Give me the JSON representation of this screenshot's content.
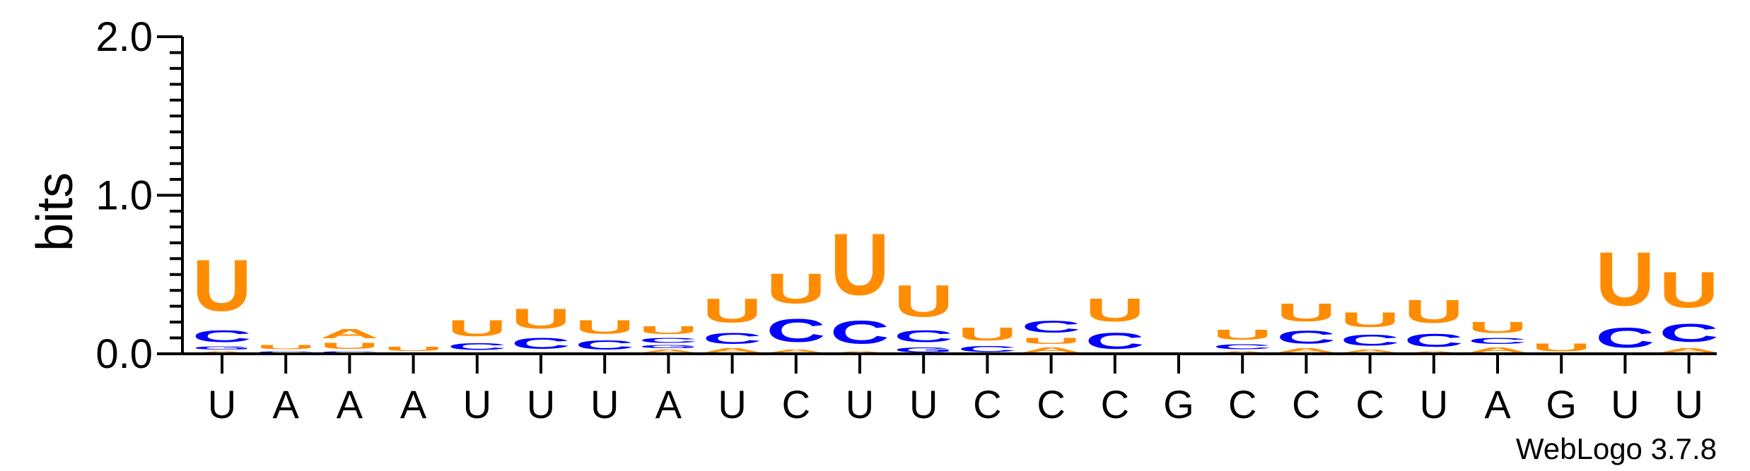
{
  "chart_data": {
    "type": "sequence-logo",
    "ylabel": "bits",
    "ylim": [
      0,
      2
    ],
    "yticks": [
      "0.0",
      "1.0",
      "2.0"
    ],
    "positions": [
      "U",
      "A",
      "A",
      "A",
      "U",
      "U",
      "U",
      "A",
      "U",
      "C",
      "U",
      "U",
      "C",
      "C",
      "C",
      "G",
      "C",
      "C",
      "C",
      "U",
      "A",
      "G",
      "U",
      "U"
    ],
    "stacks": [
      [
        {
          "letter": "A",
          "bits": 0.02
        },
        {
          "letter": "G",
          "bits": 0.03
        },
        {
          "letter": "C",
          "bits": 0.12
        },
        {
          "letter": "U",
          "bits": 0.52
        }
      ],
      [
        {
          "letter": "C",
          "bits": 0.02
        },
        {
          "letter": "U",
          "bits": 0.04
        }
      ],
      [
        {
          "letter": "C",
          "bits": 0.02
        },
        {
          "letter": "U",
          "bits": 0.06
        },
        {
          "letter": "A",
          "bits": 0.09
        }
      ],
      [
        {
          "letter": "C",
          "bits": 0.01
        },
        {
          "letter": "U",
          "bits": 0.04
        }
      ],
      [
        {
          "letter": "G",
          "bits": 0.01
        },
        {
          "letter": "C",
          "bits": 0.07
        },
        {
          "letter": "U",
          "bits": 0.16
        }
      ],
      [
        {
          "letter": "G",
          "bits": 0.01
        },
        {
          "letter": "C",
          "bits": 0.11
        },
        {
          "letter": "U",
          "bits": 0.2
        }
      ],
      [
        {
          "letter": "A",
          "bits": 0.01
        },
        {
          "letter": "C",
          "bits": 0.09
        },
        {
          "letter": "U",
          "bits": 0.14
        }
      ],
      [
        {
          "letter": "A",
          "bits": 0.03
        },
        {
          "letter": "G",
          "bits": 0.03
        },
        {
          "letter": "C",
          "bits": 0.05
        },
        {
          "letter": "U",
          "bits": 0.08
        }
      ],
      [
        {
          "letter": "A",
          "bits": 0.04
        },
        {
          "letter": "C",
          "bits": 0.11
        },
        {
          "letter": "U",
          "bits": 0.24
        }
      ],
      [
        {
          "letter": "A",
          "bits": 0.03
        },
        {
          "letter": "C",
          "bits": 0.23
        },
        {
          "letter": "U",
          "bits": 0.3
        }
      ],
      [
        {
          "letter": "A",
          "bits": 0.02
        },
        {
          "letter": "C",
          "bits": 0.23
        },
        {
          "letter": "U",
          "bits": 0.62
        }
      ],
      [
        {
          "letter": "G",
          "bits": 0.05
        },
        {
          "letter": "C",
          "bits": 0.12
        },
        {
          "letter": "U",
          "bits": 0.32
        }
      ],
      [
        {
          "letter": "C",
          "bits": 0.06
        },
        {
          "letter": "U",
          "bits": 0.13
        }
      ],
      [
        {
          "letter": "A",
          "bits": 0.05
        },
        {
          "letter": "U",
          "bits": 0.06
        },
        {
          "letter": "C",
          "bits": 0.12
        }
      ],
      [
        {
          "letter": "C",
          "bits": 0.16
        },
        {
          "letter": "U",
          "bits": 0.23
        }
      ],
      [],
      [
        {
          "letter": "A",
          "bits": 0.02
        },
        {
          "letter": "C",
          "bits": 0.05
        },
        {
          "letter": "U",
          "bits": 0.1
        }
      ],
      [
        {
          "letter": "A",
          "bits": 0.04
        },
        {
          "letter": "C",
          "bits": 0.13
        },
        {
          "letter": "U",
          "bits": 0.18
        }
      ],
      [
        {
          "letter": "A",
          "bits": 0.03
        },
        {
          "letter": "C",
          "bits": 0.11
        },
        {
          "letter": "U",
          "bits": 0.15
        }
      ],
      [
        {
          "letter": "A",
          "bits": 0.02
        },
        {
          "letter": "C",
          "bits": 0.13
        },
        {
          "letter": "U",
          "bits": 0.23
        }
      ],
      [
        {
          "letter": "A",
          "bits": 0.05
        },
        {
          "letter": "C",
          "bits": 0.06
        },
        {
          "letter": "U",
          "bits": 0.11
        }
      ],
      [
        {
          "letter": "U",
          "bits": 0.08
        }
      ],
      [
        {
          "letter": "C",
          "bits": 0.2
        },
        {
          "letter": "U",
          "bits": 0.54
        }
      ],
      [
        {
          "letter": "A",
          "bits": 0.04
        },
        {
          "letter": "C",
          "bits": 0.18
        },
        {
          "letter": "U",
          "bits": 0.36
        }
      ]
    ],
    "colors": {
      "U": "#FF8C00",
      "C": "#0000FF",
      "A": "#FF8C00",
      "G": "#0000FF"
    },
    "credit": "WebLogo 3.7.8"
  }
}
